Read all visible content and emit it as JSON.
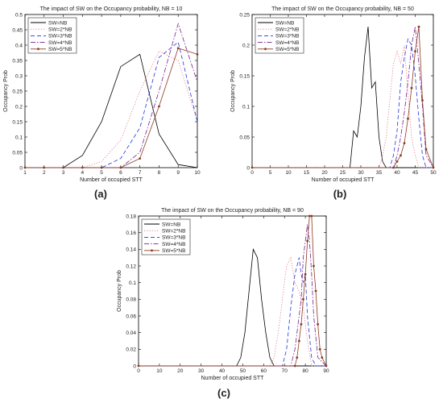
{
  "panel_labels": [
    "(a)",
    "(b)",
    "(c)"
  ],
  "colors": {
    "SW=NB": "#000000",
    "SW=2*NB": "#e0707a",
    "SW=3*NB": "#2233dd",
    "SW=4*NB": "#7a1f8f",
    "SW=5*NB": "#8b3a1e"
  },
  "chart_data": [
    {
      "type": "line",
      "title": "The impact of SW on the Occupancy probability, NB = 10",
      "xlabel": "Number of occupied STT",
      "ylabel": "Occupancy Prob",
      "xlim": [
        1,
        10
      ],
      "ylim": [
        0,
        0.5
      ],
      "xticks": [
        1,
        2,
        3,
        4,
        5,
        6,
        7,
        8,
        9,
        10
      ],
      "yticks": [
        0,
        0.05,
        0.1,
        0.15,
        0.2,
        0.25,
        0.3,
        0.35,
        0.4,
        0.45,
        0.5
      ],
      "grid": false,
      "legend": "top-left",
      "series": [
        {
          "name": "SW=NB",
          "x": [
            1,
            2,
            3,
            4,
            5,
            6,
            7,
            8,
            9,
            10
          ],
          "y": [
            0,
            0,
            0,
            0.04,
            0.15,
            0.33,
            0.37,
            0.11,
            0.01,
            0
          ]
        },
        {
          "name": "SW=2*NB",
          "x": [
            1,
            2,
            3,
            4,
            5,
            6,
            7,
            8,
            9,
            10
          ],
          "y": [
            0,
            0,
            0,
            0,
            0.02,
            0.09,
            0.25,
            0.38,
            0.35,
            0.15
          ]
        },
        {
          "name": "SW=3*NB",
          "x": [
            1,
            2,
            3,
            4,
            5,
            6,
            7,
            8,
            9,
            10
          ],
          "y": [
            0,
            0,
            0,
            0,
            0,
            0.03,
            0.13,
            0.36,
            0.41,
            0.15
          ]
        },
        {
          "name": "SW=4*NB",
          "x": [
            1,
            2,
            3,
            4,
            5,
            6,
            7,
            8,
            9,
            10
          ],
          "y": [
            0,
            0,
            0,
            0,
            0,
            0,
            0.05,
            0.25,
            0.47,
            0.28
          ]
        },
        {
          "name": "SW=5*NB",
          "x": [
            1,
            2,
            3,
            4,
            5,
            6,
            7,
            8,
            9,
            10
          ],
          "y": [
            0,
            0,
            0,
            0,
            0,
            0,
            0.03,
            0.2,
            0.39,
            0.37
          ]
        }
      ]
    },
    {
      "type": "line",
      "title": "The impact of SW on the Occupancy probability, NB = 50",
      "xlabel": "Number of occupied STT",
      "ylabel": "Occupancy Prob",
      "xlim": [
        0,
        50
      ],
      "ylim": [
        0,
        0.25
      ],
      "xticks": [
        0,
        5,
        10,
        15,
        20,
        25,
        30,
        35,
        40,
        45,
        50
      ],
      "yticks": [
        0,
        0.05,
        0.1,
        0.15,
        0.2,
        0.25
      ],
      "grid": false,
      "legend": "top-left",
      "series": [
        {
          "name": "SW=NB",
          "x": [
            0,
            27,
            28,
            29,
            30,
            31,
            32,
            33,
            34,
            35,
            36,
            37,
            38,
            50
          ],
          "y": [
            0,
            0,
            0.06,
            0.05,
            0.1,
            0.18,
            0.23,
            0.13,
            0.14,
            0.05,
            0.01,
            0,
            0,
            0
          ]
        },
        {
          "name": "SW=2*NB",
          "x": [
            0,
            35,
            36,
            37,
            38,
            39,
            40,
            41,
            42,
            43,
            44,
            45,
            46,
            50
          ],
          "y": [
            0,
            0,
            0.02,
            0.05,
            0.11,
            0.17,
            0.19,
            0.17,
            0.2,
            0.12,
            0.05,
            0.02,
            0,
            0
          ]
        },
        {
          "name": "SW=3*NB",
          "x": [
            0,
            38,
            39,
            40,
            41,
            42,
            43,
            44,
            45,
            46,
            47,
            48,
            50
          ],
          "y": [
            0,
            0,
            0.02,
            0.06,
            0.14,
            0.18,
            0.21,
            0.2,
            0.15,
            0.08,
            0.02,
            0,
            0
          ]
        },
        {
          "name": "SW=4*NB",
          "x": [
            0,
            39,
            40,
            41,
            42,
            43,
            44,
            45,
            46,
            47,
            48,
            50
          ],
          "y": [
            0,
            0,
            0.02,
            0.05,
            0.09,
            0.14,
            0.2,
            0.23,
            0.17,
            0.1,
            0.02,
            0
          ]
        },
        {
          "name": "SW=5*NB",
          "x": [
            0,
            39,
            40,
            41,
            42,
            43,
            44,
            45,
            46,
            47,
            48,
            50
          ],
          "y": [
            0,
            0,
            0.01,
            0.02,
            0.04,
            0.08,
            0.13,
            0.19,
            0.23,
            0.11,
            0.03,
            0
          ]
        }
      ]
    },
    {
      "type": "line",
      "title": "The impact of SW on the Occupancy probability, NB = 90",
      "xlabel": "Number of occupied STT",
      "ylabel": "Occupancy Prob",
      "xlim": [
        0,
        90
      ],
      "ylim": [
        0,
        0.18
      ],
      "xticks": [
        0,
        10,
        20,
        30,
        40,
        50,
        60,
        70,
        80,
        90
      ],
      "yticks": [
        0,
        0.02,
        0.04,
        0.06,
        0.08,
        0.1,
        0.12,
        0.14,
        0.16,
        0.18
      ],
      "grid": false,
      "legend": "top-left",
      "series": [
        {
          "name": "SW=NB",
          "x": [
            0,
            47,
            49,
            51,
            53,
            55,
            57,
            59,
            61,
            63,
            65,
            90
          ],
          "y": [
            0,
            0,
            0.01,
            0.04,
            0.09,
            0.14,
            0.13,
            0.08,
            0.04,
            0.01,
            0,
            0
          ]
        },
        {
          "name": "SW=2*NB",
          "x": [
            0,
            63,
            65,
            67,
            69,
            71,
            73,
            75,
            77,
            79,
            81,
            83,
            90
          ],
          "y": [
            0,
            0,
            0.01,
            0.04,
            0.08,
            0.12,
            0.13,
            0.1,
            0.09,
            0.07,
            0.03,
            0,
            0
          ]
        },
        {
          "name": "SW=3*NB",
          "x": [
            0,
            69,
            71,
            73,
            75,
            76,
            77,
            78,
            79,
            80,
            81,
            83,
            85,
            90
          ],
          "y": [
            0,
            0,
            0.02,
            0.07,
            0.11,
            0.12,
            0.13,
            0.11,
            0.1,
            0.11,
            0.06,
            0.01,
            0,
            0
          ]
        },
        {
          "name": "SW=4*NB",
          "x": [
            0,
            73,
            75,
            77,
            78,
            79,
            80,
            81,
            82,
            83,
            84,
            86,
            90
          ],
          "y": [
            0,
            0,
            0.02,
            0.06,
            0.08,
            0.13,
            0.15,
            0.17,
            0.15,
            0.11,
            0.06,
            0.01,
            0
          ]
        },
        {
          "name": "SW=5*NB",
          "x": [
            0,
            75,
            76,
            77,
            78,
            79,
            80,
            81,
            82,
            83,
            84,
            85,
            86,
            87,
            88,
            90
          ],
          "y": [
            0,
            0,
            0.01,
            0.03,
            0.05,
            0.08,
            0.11,
            0.15,
            0.18,
            0.18,
            0.12,
            0.09,
            0.05,
            0.02,
            0.01,
            0
          ]
        }
      ]
    }
  ]
}
